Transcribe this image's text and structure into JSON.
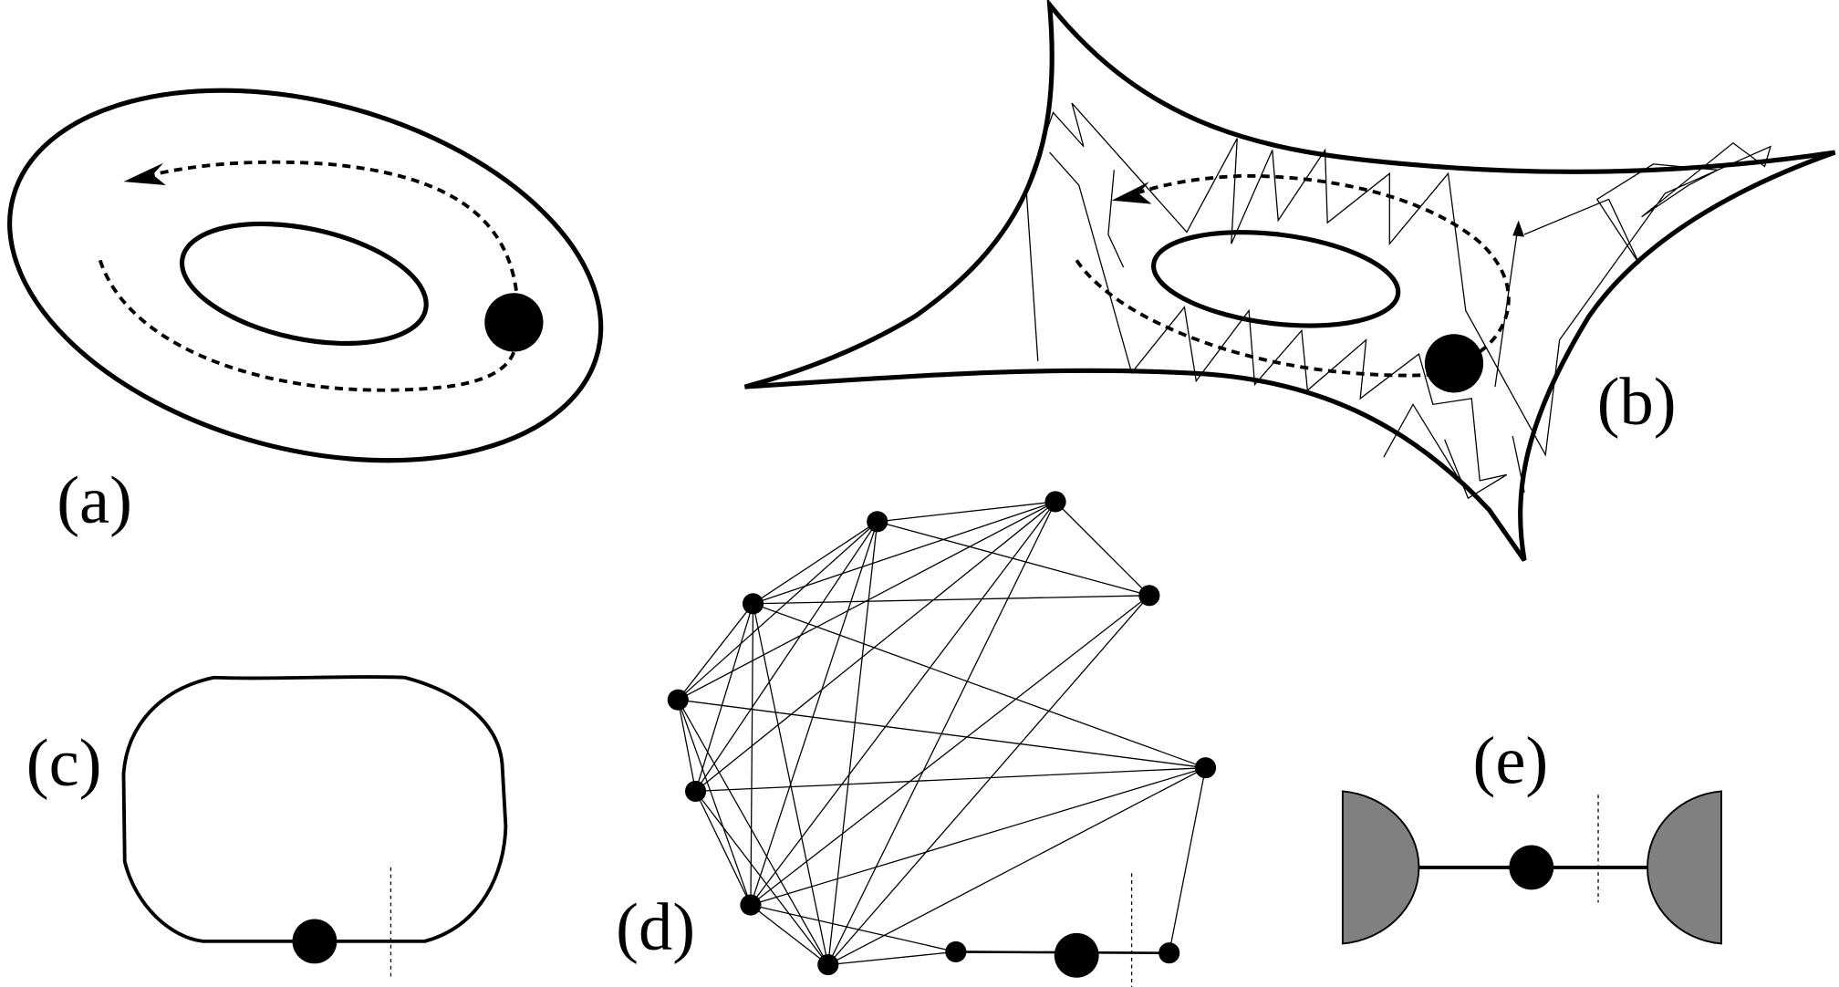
{
  "panels": {
    "a": {
      "label": "(a)"
    },
    "b": {
      "label": "(b)"
    },
    "c": {
      "label": "(c)"
    },
    "d": {
      "label": "(d)"
    },
    "e": {
      "label": "(e)"
    }
  },
  "colors": {
    "stroke": "#000000",
    "background": "#ffffff",
    "cap_fill": "#808080"
  }
}
